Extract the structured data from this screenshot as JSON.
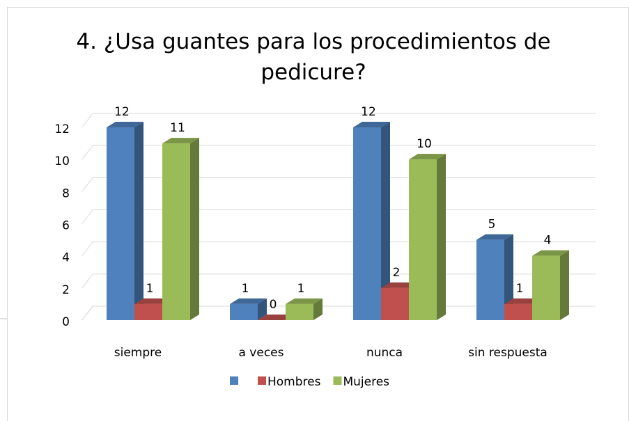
{
  "chart_data": {
    "type": "bar3d",
    "title": "4. ¿Usa guantes para los procedimientos de pedicure?",
    "categories": [
      "siempre",
      "a  veces",
      "nunca",
      "sin respuesta"
    ],
    "series": [
      {
        "color": "#4f81bd",
        "values": [
          12,
          1,
          12,
          5
        ]
      },
      {
        "name": "Hombres",
        "color": "#c0504d",
        "values": [
          1,
          0,
          2,
          1
        ]
      },
      {
        "name": "Mujeres",
        "color": "#9bbb59",
        "values": [
          11,
          1,
          10,
          4
        ]
      }
    ],
    "ylim": [
      0,
      12
    ],
    "yticks": [
      0,
      2,
      4,
      6,
      8,
      10,
      12
    ],
    "grid": true,
    "legend": "bottom"
  }
}
